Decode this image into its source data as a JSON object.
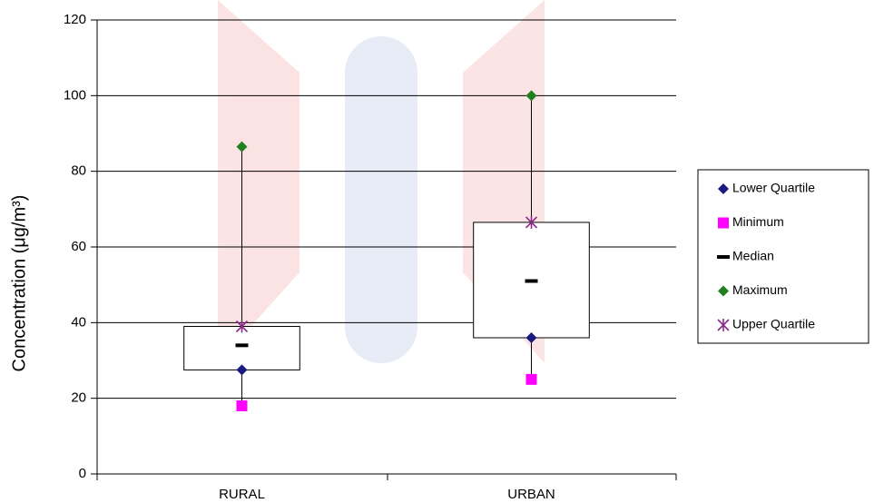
{
  "chart_data": {
    "type": "box",
    "y_label": "Concentration (μg/m³)",
    "categories": [
      "RURAL",
      "URBAN"
    ],
    "series": [
      {
        "name": "Lower Quartile",
        "color": "#1a1a80",
        "marker": "diamond",
        "values": [
          27.5,
          36
        ]
      },
      {
        "name": "Minimum",
        "color": "#ff00ff",
        "marker": "square",
        "values": [
          18,
          25
        ]
      },
      {
        "name": "Median",
        "color": "#000000",
        "marker": "dash",
        "values": [
          34,
          51
        ]
      },
      {
        "name": "Maximum",
        "color": "#208020",
        "marker": "diamond",
        "values": [
          86.5,
          100
        ]
      },
      {
        "name": "Upper Quartile",
        "color": "#8a2a8a",
        "marker": "star",
        "values": [
          39,
          66.5
        ]
      }
    ],
    "ylim": [
      0,
      120
    ],
    "yticks": [
      0,
      20,
      40,
      60,
      80,
      100,
      120
    ],
    "grid": true,
    "legend": "right"
  }
}
